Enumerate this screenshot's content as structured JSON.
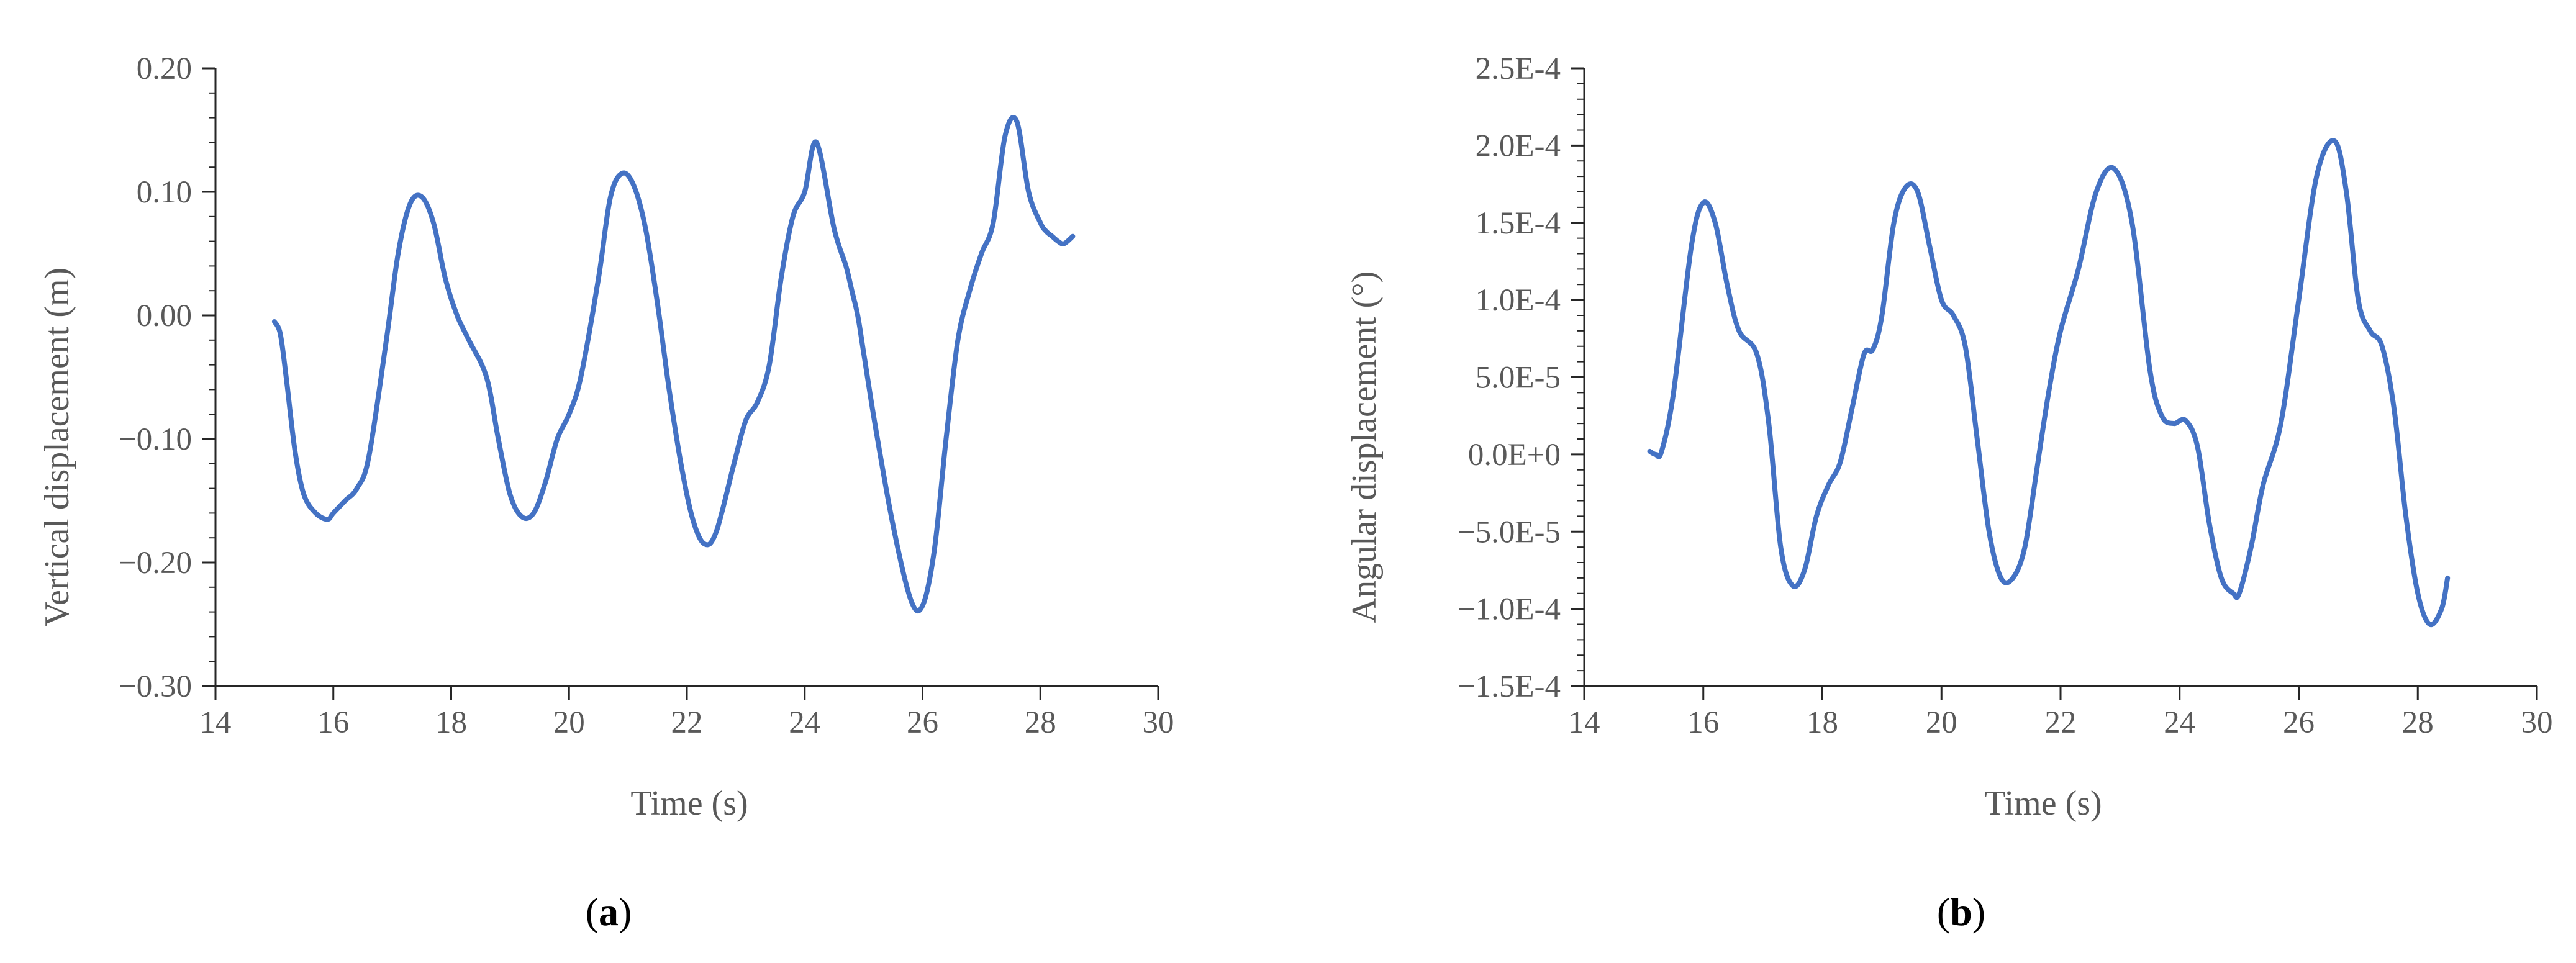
{
  "colors": {
    "line": "#4472c4",
    "axis": "#262626",
    "text": "#595959"
  },
  "chart_data": [
    {
      "type": "line",
      "panel": "a",
      "xlabel": "Time (s)",
      "ylabel": "Vertical displacement (m)",
      "xlim": [
        14,
        30
      ],
      "ylim": [
        -0.3,
        0.2
      ],
      "xticks": [
        14,
        16,
        18,
        20,
        22,
        24,
        26,
        28,
        30
      ],
      "xtick_labels": [
        "14",
        "16",
        "18",
        "20",
        "22",
        "24",
        "26",
        "28",
        "30"
      ],
      "yticks": [
        -0.3,
        -0.2,
        -0.1,
        0.0,
        0.1,
        0.2
      ],
      "ytick_labels": [
        "−0.30",
        "−0.20",
        "−0.10",
        "0.00",
        "0.10",
        "0.20"
      ],
      "grid": false,
      "series": [
        {
          "x": [
            15.0,
            15.1,
            15.2,
            15.35,
            15.5,
            15.7,
            15.9,
            16.0,
            16.2,
            16.4,
            16.6,
            16.9,
            17.1,
            17.3,
            17.5,
            17.7,
            17.9,
            18.1,
            18.3,
            18.6,
            18.8,
            19.0,
            19.2,
            19.4,
            19.6,
            19.8,
            20.0,
            20.2,
            20.5,
            20.7,
            20.9,
            21.1,
            21.3,
            21.5,
            21.7,
            21.9,
            22.1,
            22.3,
            22.5,
            22.8,
            23.0,
            23.2,
            23.4,
            23.6,
            23.8,
            24.0,
            24.2,
            24.5,
            24.7,
            24.8,
            24.9,
            25.0,
            25.2,
            25.5,
            25.8,
            26.0,
            26.2,
            26.4,
            26.6,
            26.8,
            27.0,
            27.2,
            27.4,
            27.6,
            27.8,
            28.0,
            28.1,
            28.2,
            28.3,
            28.4,
            28.55
          ],
          "y": [
            -0.005,
            -0.015,
            -0.05,
            -0.11,
            -0.145,
            -0.16,
            -0.165,
            -0.16,
            -0.15,
            -0.14,
            -0.115,
            -0.02,
            0.05,
            0.09,
            0.096,
            0.075,
            0.03,
            0.0,
            -0.02,
            -0.05,
            -0.1,
            -0.145,
            -0.163,
            -0.16,
            -0.135,
            -0.1,
            -0.08,
            -0.05,
            0.03,
            0.095,
            0.115,
            0.105,
            0.07,
            0.01,
            -0.06,
            -0.12,
            -0.165,
            -0.185,
            -0.175,
            -0.12,
            -0.085,
            -0.07,
            -0.04,
            0.03,
            0.08,
            0.1,
            0.14,
            0.07,
            0.04,
            0.02,
            0.0,
            -0.03,
            -0.09,
            -0.17,
            -0.23,
            -0.235,
            -0.19,
            -0.1,
            -0.02,
            0.02,
            0.05,
            0.075,
            0.145,
            0.157,
            0.1,
            0.075,
            0.068,
            0.064,
            0.06,
            0.058,
            0.064
          ]
        }
      ]
    },
    {
      "type": "line",
      "panel": "b",
      "xlabel": "Time (s)",
      "ylabel": "Angular  displacement (°)",
      "xlim": [
        14,
        30
      ],
      "ylim": [
        -0.00015,
        0.00025
      ],
      "xticks": [
        14,
        16,
        18,
        20,
        22,
        24,
        26,
        28,
        30
      ],
      "xtick_labels": [
        "14",
        "16",
        "18",
        "20",
        "22",
        "24",
        "26",
        "28",
        "30"
      ],
      "yticks": [
        -0.00015,
        -0.0001,
        -5e-05,
        0,
        5e-05,
        0.0001,
        0.00015,
        0.0002,
        0.00025
      ],
      "ytick_labels": [
        "−1.5E-4",
        "−1.0E-4",
        "−5.0E-5",
        "0.0E+0",
        "5.0E-5",
        "1.0E-4",
        "1.5E-4",
        "2.0E-4",
        "2.5E-4"
      ],
      "grid": false,
      "series": [
        {
          "x": [
            15.1,
            15.2,
            15.3,
            15.5,
            15.8,
            16.0,
            16.2,
            16.4,
            16.6,
            16.9,
            17.1,
            17.3,
            17.5,
            17.7,
            17.9,
            18.1,
            18.3,
            18.5,
            18.7,
            18.85,
            19.0,
            19.2,
            19.4,
            19.6,
            19.8,
            20.0,
            20.2,
            20.4,
            20.6,
            20.8,
            21.0,
            21.2,
            21.4,
            21.6,
            21.8,
            22.0,
            22.3,
            22.6,
            22.9,
            23.2,
            23.5,
            23.7,
            23.9,
            24.1,
            24.3,
            24.5,
            24.7,
            24.9,
            25.0,
            25.2,
            25.4,
            25.7,
            26.0,
            26.3,
            26.6,
            26.8,
            27.0,
            27.2,
            27.4,
            27.6,
            27.8,
            28.0,
            28.2,
            28.4,
            28.5
          ],
          "y": [
            2e-06,
            0.0,
            2e-06,
            4e-05,
            0.000135,
            0.000163,
            0.00015,
            0.00011,
            8e-05,
            6.5e-05,
            2e-05,
            -6e-05,
            -8.5e-05,
            -7.5e-05,
            -4e-05,
            -2e-05,
            -5e-06,
            3e-05,
            6.5e-05,
            6.8e-05,
            9e-05,
            0.00015,
            0.000173,
            0.00017,
            0.000135,
            0.0001,
            9e-05,
            7e-05,
            1e-05,
            -5e-05,
            -8e-05,
            -8e-05,
            -6e-05,
            -1e-05,
            4e-05,
            8e-05,
            0.00012,
            0.00017,
            0.000185,
            0.00015,
            5.5e-05,
            2.5e-05,
            2e-05,
            2.2e-05,
            5e-06,
            -4.5e-05,
            -8e-05,
            -9e-05,
            -9e-05,
            -6e-05,
            -2e-05,
            2e-05,
            0.0001,
            0.00018,
            0.000203,
            0.00017,
            0.0001,
            8e-05,
            7e-05,
            3e-05,
            -4e-05,
            -9e-05,
            -0.00011,
            -0.0001,
            -8e-05
          ]
        }
      ]
    }
  ],
  "panel_labels": [
    {
      "open": "(",
      "letter": "a",
      "close": ")"
    },
    {
      "open": "(",
      "letter": "b",
      "close": ")"
    }
  ]
}
